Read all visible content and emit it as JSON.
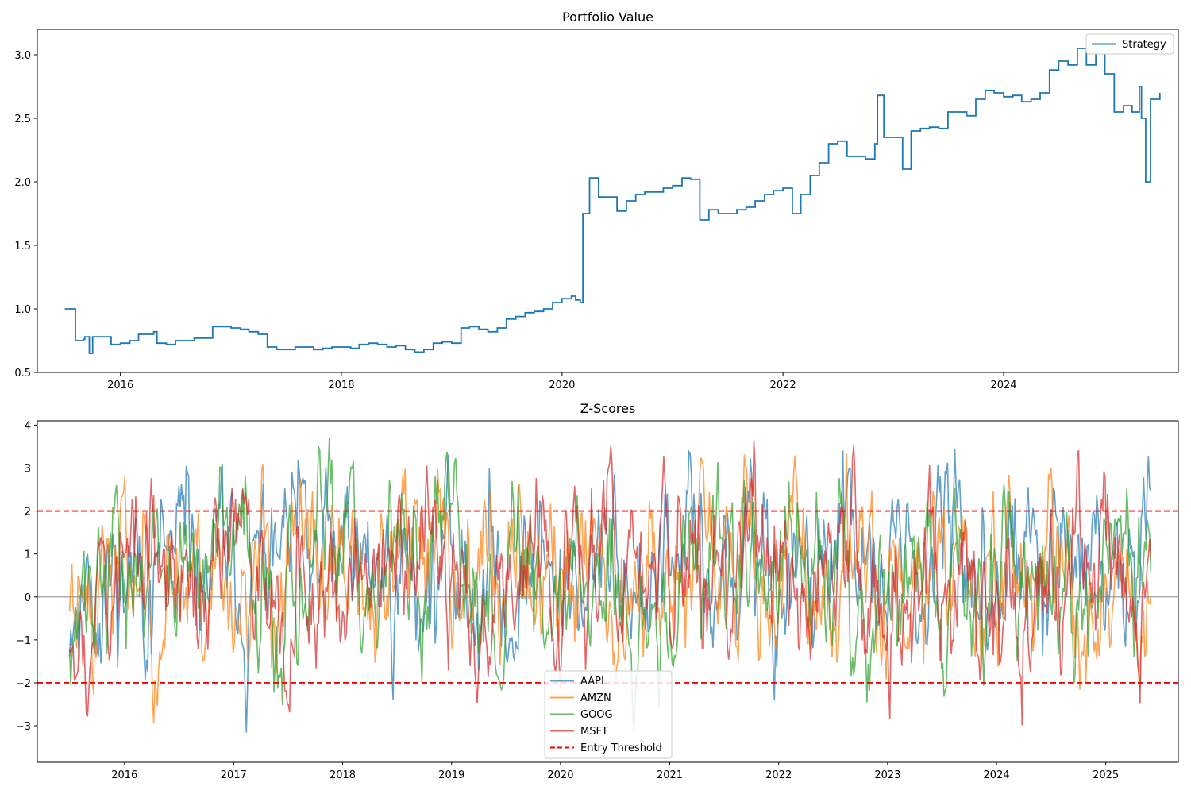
{
  "chart_data": [
    {
      "type": "line",
      "title": "Portfolio Value",
      "xlabel": "",
      "ylabel": "",
      "xlim": [
        "2015-04-01",
        "2025-08-01"
      ],
      "ylim": [
        0.5,
        3.2
      ],
      "x_ticks": [
        "2016",
        "2018",
        "2020",
        "2022",
        "2024"
      ],
      "y_ticks": [
        "0.5",
        "1.0",
        "1.5",
        "2.0",
        "2.5",
        "3.0"
      ],
      "legend": {
        "placement": "top-right",
        "entries": [
          "Strategy"
        ]
      },
      "grid": false,
      "series": [
        {
          "name": "Strategy",
          "color": "#1f77b4",
          "x": [
            "2015-07-01",
            "2015-08-01",
            "2015-08-05",
            "2015-09-01",
            "2015-09-05",
            "2015-09-20",
            "2015-10-01",
            "2015-11-01",
            "2015-12-01",
            "2016-01-01",
            "2016-02-01",
            "2016-03-01",
            "2016-04-01",
            "2016-04-20",
            "2016-05-01",
            "2016-06-01",
            "2016-07-01",
            "2016-08-01",
            "2016-09-01",
            "2016-10-01",
            "2016-11-01",
            "2016-12-01",
            "2017-01-01",
            "2017-02-01",
            "2017-03-01",
            "2017-04-01",
            "2017-05-01",
            "2017-06-01",
            "2017-07-01",
            "2017-08-01",
            "2017-09-01",
            "2017-10-01",
            "2017-11-01",
            "2017-12-01",
            "2018-01-01",
            "2018-02-01",
            "2018-03-01",
            "2018-04-01",
            "2018-05-01",
            "2018-06-01",
            "2018-07-01",
            "2018-08-01",
            "2018-09-01",
            "2018-10-01",
            "2018-11-01",
            "2018-12-01",
            "2019-01-01",
            "2019-02-01",
            "2019-03-01",
            "2019-04-01",
            "2019-05-01",
            "2019-06-01",
            "2019-07-01",
            "2019-08-01",
            "2019-09-01",
            "2019-10-01",
            "2019-11-01",
            "2019-12-01",
            "2020-01-01",
            "2020-02-01",
            "2020-02-15",
            "2020-03-01",
            "2020-03-10",
            "2020-04-01",
            "2020-05-01",
            "2020-06-01",
            "2020-07-01",
            "2020-08-01",
            "2020-09-01",
            "2020-10-01",
            "2020-11-01",
            "2020-12-01",
            "2021-01-01",
            "2021-02-01",
            "2021-03-01",
            "2021-04-01",
            "2021-05-01",
            "2021-06-01",
            "2021-07-01",
            "2021-08-01",
            "2021-09-01",
            "2021-10-01",
            "2021-11-01",
            "2021-12-01",
            "2022-01-01",
            "2022-02-01",
            "2022-03-01",
            "2022-04-01",
            "2022-05-01",
            "2022-06-01",
            "2022-07-01",
            "2022-08-01",
            "2022-09-01",
            "2022-10-01",
            "2022-11-01",
            "2022-11-10",
            "2022-12-01",
            "2023-01-01",
            "2023-02-01",
            "2023-03-01",
            "2023-04-01",
            "2023-05-01",
            "2023-06-01",
            "2023-07-01",
            "2023-08-01",
            "2023-09-01",
            "2023-10-01",
            "2023-11-01",
            "2023-12-01",
            "2024-01-01",
            "2024-02-01",
            "2024-03-01",
            "2024-04-01",
            "2024-05-01",
            "2024-06-01",
            "2024-07-01",
            "2024-08-01",
            "2024-09-01",
            "2024-10-01",
            "2024-11-01",
            "2024-12-01",
            "2025-01-01",
            "2025-02-01",
            "2025-03-01",
            "2025-03-25",
            "2025-04-01",
            "2025-04-15",
            "2025-05-01",
            "2025-06-01"
          ],
          "y": [
            1.0,
            1.0,
            0.75,
            0.76,
            0.78,
            0.65,
            0.78,
            0.78,
            0.72,
            0.73,
            0.75,
            0.8,
            0.8,
            0.82,
            0.73,
            0.72,
            0.75,
            0.75,
            0.77,
            0.77,
            0.86,
            0.86,
            0.85,
            0.84,
            0.82,
            0.8,
            0.7,
            0.68,
            0.68,
            0.7,
            0.7,
            0.68,
            0.69,
            0.7,
            0.7,
            0.69,
            0.72,
            0.73,
            0.72,
            0.7,
            0.71,
            0.68,
            0.66,
            0.68,
            0.73,
            0.74,
            0.73,
            0.85,
            0.86,
            0.84,
            0.82,
            0.85,
            0.92,
            0.94,
            0.97,
            0.98,
            1.0,
            1.05,
            1.08,
            1.1,
            1.07,
            1.05,
            1.75,
            2.03,
            1.88,
            1.88,
            1.77,
            1.85,
            1.9,
            1.92,
            1.92,
            1.95,
            1.97,
            2.03,
            2.02,
            1.7,
            1.78,
            1.75,
            1.75,
            1.78,
            1.8,
            1.85,
            1.9,
            1.93,
            1.95,
            1.75,
            1.9,
            2.05,
            2.15,
            2.3,
            2.32,
            2.2,
            2.2,
            2.18,
            2.3,
            2.68,
            2.35,
            2.35,
            2.1,
            2.4,
            2.42,
            2.43,
            2.42,
            2.55,
            2.55,
            2.52,
            2.65,
            2.72,
            2.7,
            2.67,
            2.68,
            2.63,
            2.65,
            2.7,
            2.88,
            2.95,
            2.92,
            3.05,
            2.92,
            3.07,
            2.85,
            2.55,
            2.6,
            2.55,
            2.75,
            2.5,
            2.0,
            2.65,
            2.7
          ]
        }
      ]
    },
    {
      "type": "line",
      "title": "Z-Scores",
      "xlabel": "",
      "ylabel": "",
      "xlim": [
        "2015-03-15",
        "2025-09-01"
      ],
      "ylim": [
        -3.85,
        4.1
      ],
      "x_ticks": [
        "2016",
        "2017",
        "2018",
        "2019",
        "2020",
        "2021",
        "2022",
        "2023",
        "2024",
        "2025"
      ],
      "y_ticks": [
        "−3",
        "−2",
        "−1",
        "0",
        "1",
        "2",
        "3",
        "4"
      ],
      "legend": {
        "placement": "lower-center",
        "entries": [
          "AAPL",
          "AMZN",
          "GOOG",
          "MSFT",
          "Entry Threshold"
        ]
      },
      "grid": false,
      "series_start": "2015-07-01",
      "series_end": "2025-06-01",
      "thresholds": [
        2,
        -2
      ],
      "zero_line": 0,
      "series": [
        {
          "name": "AAPL",
          "color": "#1f77b4",
          "seed": 11
        },
        {
          "name": "AMZN",
          "color": "#ff7f0e",
          "seed": 23
        },
        {
          "name": "GOOG",
          "color": "#2ca02c",
          "seed": 37
        },
        {
          "name": "MSFT",
          "color": "#d62728",
          "seed": 53
        }
      ],
      "threshold_label": "Entry Threshold",
      "threshold_color": "#ff0000"
    }
  ]
}
